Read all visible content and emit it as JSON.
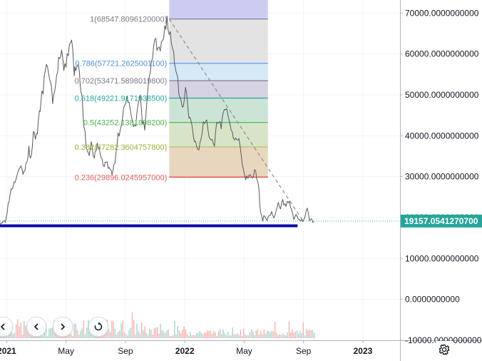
{
  "chart_data": {
    "type": "line",
    "title": "",
    "x_ticks": [
      {
        "label": "2021",
        "t": 0.0,
        "bold": true
      },
      {
        "label": "May",
        "t": 4.0,
        "bold": false
      },
      {
        "label": "Sep",
        "t": 8.0,
        "bold": false
      },
      {
        "label": "2022",
        "t": 12.0,
        "bold": true
      },
      {
        "label": "May",
        "t": 16.0,
        "bold": false
      },
      {
        "label": "Sep",
        "t": 20.0,
        "bold": false
      },
      {
        "label": "2023",
        "t": 24.0,
        "bold": true
      }
    ],
    "x_range": [
      -0.45,
      26.5
    ],
    "ylim": [
      -10000,
      73200
    ],
    "y_ticks": [
      {
        "value": 70000,
        "label": "70000.0000000000"
      },
      {
        "value": 60000,
        "label": "60000.0000000000"
      },
      {
        "value": 50000,
        "label": "50000.0000000000"
      },
      {
        "value": 40000,
        "label": "40000.0000000000"
      },
      {
        "value": 30000,
        "label": "30000.0000000000"
      },
      {
        "value": 20000,
        "label": "20000.0000000000"
      },
      {
        "value": 10000,
        "label": "10000.0000000000"
      },
      {
        "value": 0,
        "label": "0.0000000000"
      },
      {
        "value": -10000,
        "label": "-10000.0000000000"
      }
    ],
    "grid": true,
    "price_series": {
      "color": "#595959",
      "points": [
        [
          -0.45,
          18700
        ],
        [
          -0.1,
          19200
        ],
        [
          0.1,
          23000
        ],
        [
          0.3,
          27000
        ],
        [
          0.5,
          28600
        ],
        [
          0.7,
          31000
        ],
        [
          0.9,
          33000
        ],
        [
          1.1,
          30500
        ],
        [
          1.3,
          32500
        ],
        [
          1.5,
          37000
        ],
        [
          1.6,
          34000
        ],
        [
          1.8,
          40000
        ],
        [
          2.0,
          39500
        ],
        [
          2.2,
          45000
        ],
        [
          2.3,
          48500
        ],
        [
          2.45,
          51000
        ],
        [
          2.6,
          55500
        ],
        [
          2.75,
          57500
        ],
        [
          2.9,
          54000
        ],
        [
          3.1,
          49000
        ],
        [
          3.3,
          52000
        ],
        [
          3.5,
          58500
        ],
        [
          3.7,
          59500
        ],
        [
          3.85,
          56000
        ],
        [
          4.0,
          57500
        ],
        [
          4.15,
          60500
        ],
        [
          4.3,
          64000
        ],
        [
          4.45,
          60500
        ],
        [
          4.55,
          55000
        ],
        [
          4.65,
          57000
        ],
        [
          4.8,
          58000
        ],
        [
          4.9,
          56000
        ],
        [
          5.0,
          52000
        ],
        [
          5.1,
          48000
        ],
        [
          5.2,
          43000
        ],
        [
          5.35,
          37000
        ],
        [
          5.5,
          35000
        ],
        [
          5.7,
          38000
        ],
        [
          5.9,
          34500
        ],
        [
          6.1,
          38000
        ],
        [
          6.3,
          35500
        ],
        [
          6.5,
          33000
        ],
        [
          6.7,
          33500
        ],
        [
          6.9,
          32000
        ],
        [
          7.1,
          30500
        ],
        [
          7.3,
          34000
        ],
        [
          7.5,
          40000
        ],
        [
          7.65,
          42000
        ],
        [
          7.8,
          45000
        ],
        [
          7.95,
          47000
        ],
        [
          8.1,
          48500
        ],
        [
          8.25,
          47000
        ],
        [
          8.4,
          46000
        ],
        [
          8.55,
          43000
        ],
        [
          8.7,
          42500
        ],
        [
          8.85,
          47500
        ],
        [
          9.0,
          49000
        ],
        [
          9.15,
          43000
        ],
        [
          9.3,
          42000
        ],
        [
          9.45,
          48000
        ],
        [
          9.6,
          54500
        ],
        [
          9.75,
          57000
        ],
        [
          9.9,
          61500
        ],
        [
          10.05,
          62500
        ],
        [
          10.2,
          60000
        ],
        [
          10.35,
          61000
        ],
        [
          10.5,
          63500
        ],
        [
          10.65,
          66500
        ],
        [
          10.8,
          68500
        ],
        [
          10.95,
          65000
        ],
        [
          11.1,
          63500
        ],
        [
          11.25,
          60000
        ],
        [
          11.35,
          57000
        ],
        [
          11.45,
          56500
        ],
        [
          11.6,
          50500
        ],
        [
          11.75,
          49000
        ],
        [
          11.9,
          47500
        ],
        [
          12.05,
          51000
        ],
        [
          12.2,
          47000
        ],
        [
          12.35,
          44000
        ],
        [
          12.5,
          42000
        ],
        [
          12.65,
          38500
        ],
        [
          12.8,
          37500
        ],
        [
          12.95,
          36800
        ],
        [
          13.1,
          38500
        ],
        [
          13.25,
          43500
        ],
        [
          13.4,
          44500
        ],
        [
          13.55,
          41000
        ],
        [
          13.7,
          38500
        ],
        [
          13.85,
          39000
        ],
        [
          14.0,
          38000
        ],
        [
          14.15,
          43000
        ],
        [
          14.3,
          44000
        ],
        [
          14.45,
          42500
        ],
        [
          14.6,
          46800
        ],
        [
          14.75,
          47500
        ],
        [
          14.9,
          45000
        ],
        [
          15.05,
          43500
        ],
        [
          15.2,
          41000
        ],
        [
          15.35,
          40000
        ],
        [
          15.5,
          38500
        ],
        [
          15.65,
          39000
        ],
        [
          15.8,
          35500
        ],
        [
          15.95,
          31000
        ],
        [
          16.1,
          29500
        ],
        [
          16.25,
          29500
        ],
        [
          16.4,
          30800
        ],
        [
          16.55,
          29800
        ],
        [
          16.7,
          31500
        ],
        [
          16.85,
          29500
        ],
        [
          17.0,
          26500
        ],
        [
          17.1,
          22000
        ],
        [
          17.25,
          19500
        ],
        [
          17.4,
          20500
        ],
        [
          17.55,
          19800
        ],
        [
          17.7,
          20500
        ],
        [
          17.85,
          21500
        ],
        [
          18.0,
          20200
        ],
        [
          18.15,
          21200
        ],
        [
          18.3,
          23500
        ],
        [
          18.45,
          22500
        ],
        [
          18.6,
          24000
        ],
        [
          18.75,
          23000
        ],
        [
          18.9,
          23500
        ],
        [
          19.05,
          24200
        ],
        [
          19.2,
          21500
        ],
        [
          19.35,
          20000
        ],
        [
          19.5,
          20300
        ],
        [
          19.65,
          19700
        ],
        [
          19.8,
          19500
        ],
        [
          19.95,
          19000
        ],
        [
          20.1,
          20200
        ],
        [
          20.25,
          22000
        ],
        [
          20.4,
          19500
        ],
        [
          20.55,
          19300
        ],
        [
          20.7,
          19157
        ]
      ]
    },
    "volume_range": [
      -0.45,
      20.7
    ],
    "fibonacci": {
      "levels": [
        {
          "ratio": 1,
          "value": 68547.809612,
          "label": "1(68547.8096120000)",
          "line_color": "#787b86",
          "fill": "#e2e2e2",
          "text_color": "#787b86"
        },
        {
          "ratio": 0.786,
          "value": 57721.26250011,
          "label": "0.786(57721.2625001100)",
          "line_color": "#5b9cf6",
          "fill": "#d3e8f5",
          "text_color": "#4f90d6"
        },
        {
          "ratio": 0.702,
          "value": 53471.58980198,
          "label": "0.702(53471.5898019800)",
          "line_color": "#7e7e8a",
          "fill": "#d3d1e2",
          "text_color": "#787b86"
        },
        {
          "ratio": 0.618,
          "value": 49221.91719385,
          "label": "0.618(49221.9171938500)",
          "line_color": "#26a69a",
          "fill": "#c8e3d3",
          "text_color": "#26a69a"
        },
        {
          "ratio": 0.5,
          "value": 43252.13818982,
          "label": "0.5(43252.1381898200)",
          "line_color": "#4caf50",
          "fill": "#d5e3c4",
          "text_color": "#4caf50"
        },
        {
          "ratio": 0.382,
          "value": 37282.36047578,
          "label": "0.382(37282.3604757800)",
          "line_color": "#a9c256",
          "fill": "#e7d5ba",
          "text_color": "#9ab03a"
        },
        {
          "ratio": 0.236,
          "value": 29896.0245957,
          "label": "0.236(29896.0245957000)",
          "line_color": "#e53935",
          "fill": "",
          "text_color": "#e05f5b"
        }
      ],
      "top_band": {
        "value": 73200,
        "fill": "#c9c9f2"
      },
      "start_t": 10.95,
      "end_t": 17.6
    },
    "trendline": {
      "from": [
        10.95,
        68547.809612
      ],
      "to": [
        20.0,
        19000
      ],
      "color": "#8c8c8c"
    },
    "support_line": {
      "value": 18000,
      "from_t": -0.45,
      "to_t": 19.6,
      "color": "#0a0aad"
    },
    "last_price": {
      "value": 19157.05412707,
      "label": "19157.0541270700",
      "line_color": "#3bb3a6",
      "badge_color": "#26a69a"
    },
    "colors": {
      "up": "#26a69a",
      "down": "#ef5350",
      "grid": "#f0f3fa",
      "axis_text": "#131722",
      "axis_line": "#b2b5be"
    }
  },
  "toolbar": {
    "settings_icon": "gear-icon",
    "nav_icons": [
      "home-icon",
      "chevron-left-icon",
      "chevron-right-icon",
      "reset-icon"
    ]
  }
}
